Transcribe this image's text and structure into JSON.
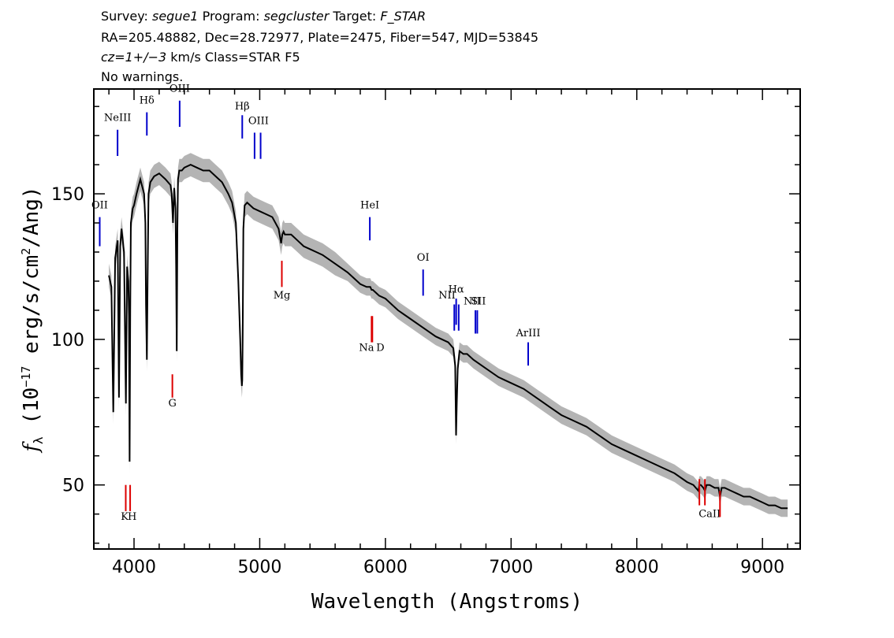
{
  "header": {
    "survey_label": "Survey:",
    "survey": "segue1",
    "program_label": "Program:",
    "program": "segcluster",
    "target_label": "Target:",
    "target": "F_STAR",
    "line2": "RA=205.48882, Dec=28.72977, Plate=2475, Fiber=547, MJD=53845",
    "cz": "cz=1+/−3",
    "class_text": " km/s Class=STAR F5",
    "warnings": "No warnings."
  },
  "chart_data": {
    "type": "line",
    "xlabel": "Wavelength (Angstroms)",
    "ylabel_prefix": "f",
    "ylabel_sub": "λ",
    "ylabel_unit": " (10",
    "ylabel_exp": "−17",
    "ylabel_tail": " erg/s/cm",
    "ylabel_exp2": "2",
    "ylabel_end": "/Ang)",
    "xlim": [
      3680,
      9300
    ],
    "ylim": [
      28,
      186
    ],
    "xticks": [
      4000,
      5000,
      6000,
      7000,
      8000,
      9000
    ],
    "xtick_labels": [
      "4000",
      "5000",
      "6000",
      "7000",
      "8000",
      "9000"
    ],
    "yticks": [
      50,
      100,
      150
    ],
    "ytick_labels": [
      "50",
      "100",
      "150"
    ],
    "colors": {
      "flux": "#000000",
      "error": "#b4b4b4",
      "emission": "#0000cc",
      "absorption": "#dd0000"
    },
    "series": [
      {
        "x": [
          3800,
          3820,
          3835,
          3850,
          3870,
          3880,
          3890,
          3900,
          3920,
          3935,
          3945,
          3955,
          3960,
          3965,
          3970,
          3975,
          3990,
          4000,
          4020,
          4050,
          4080,
          4090,
          4095,
          4102,
          4108,
          4115,
          4130,
          4160,
          4200,
          4250,
          4290,
          4300,
          4310,
          4320,
          4330,
          4335,
          4340,
          4345,
          4350,
          4360,
          4380,
          4400,
          4450,
          4500,
          4550,
          4600,
          4650,
          4700,
          4750,
          4780,
          4810,
          4830,
          4845,
          4852,
          4858,
          4861,
          4864,
          4870,
          4880,
          4900,
          4950,
          5000,
          5050,
          5100,
          5150,
          5170,
          5180,
          5190,
          5200,
          5250,
          5300,
          5350,
          5400,
          5450,
          5500,
          5600,
          5700,
          5800,
          5850,
          5880,
          5890,
          5900,
          5950,
          6000,
          6100,
          6200,
          6300,
          6400,
          6500,
          6540,
          6555,
          6562,
          6568,
          6575,
          6590,
          6620,
          6650,
          6700,
          6800,
          6900,
          7000,
          7100,
          7200,
          7300,
          7400,
          7500,
          7600,
          7700,
          7800,
          7900,
          8000,
          8100,
          8200,
          8300,
          8400,
          8450,
          8490,
          8498,
          8510,
          8530,
          8542,
          8555,
          8580,
          8620,
          8650,
          8662,
          8675,
          8700,
          8750,
          8800,
          8850,
          8900,
          8950,
          9000,
          9050,
          9100,
          9150,
          9200
        ],
        "y": [
          122,
          118,
          75,
          128,
          134,
          80,
          132,
          138,
          130,
          78,
          125,
          120,
          108,
          58,
          110,
          140,
          145,
          146,
          150,
          155,
          150,
          140,
          112,
          93,
          120,
          150,
          154,
          156,
          157,
          155,
          153,
          150,
          140,
          152,
          145,
          125,
          96,
          138,
          155,
          158,
          158,
          159,
          160,
          159,
          158,
          158,
          156,
          154,
          150,
          147,
          140,
          120,
          100,
          88,
          84,
          86,
          100,
          138,
          146,
          147,
          145,
          144,
          143,
          142,
          138,
          133,
          136,
          137,
          136,
          136,
          134,
          132,
          131,
          130,
          129,
          126,
          123,
          119,
          118,
          118,
          117,
          117,
          115,
          114,
          110,
          107,
          104,
          101,
          99,
          97,
          91,
          67,
          78,
          90,
          96,
          95,
          95,
          93,
          90,
          87,
          85,
          83,
          80,
          77,
          74,
          72,
          70,
          67,
          64,
          62,
          60,
          58,
          56,
          54,
          51,
          50,
          48,
          50,
          50,
          49,
          48,
          50,
          50,
          49,
          49,
          46,
          49,
          49,
          48,
          47,
          46,
          46,
          45,
          44,
          43,
          43,
          42,
          42
        ],
        "err": [
          4,
          4,
          4,
          4,
          4,
          4,
          4,
          4,
          4,
          4,
          4,
          4,
          4,
          4,
          4,
          4,
          4,
          4,
          4,
          4,
          4,
          4,
          4,
          4,
          4,
          4,
          4,
          4,
          4,
          4,
          4,
          4,
          4,
          4,
          4,
          4,
          4,
          4,
          4,
          4,
          4,
          4,
          4,
          4,
          4,
          4,
          4,
          4,
          4,
          4,
          4,
          4,
          4,
          4,
          4,
          4,
          4,
          4,
          4,
          4,
          4,
          4,
          4,
          4,
          4,
          4,
          4,
          4,
          4,
          4,
          4,
          4,
          4,
          4,
          4,
          4,
          3,
          3,
          3,
          3,
          3,
          3,
          3,
          3,
          3,
          3,
          3,
          3,
          3,
          3,
          3,
          3,
          3,
          3,
          3,
          3,
          3,
          3,
          3,
          3,
          3,
          3,
          3,
          3,
          3,
          3,
          3,
          3,
          3,
          3,
          3,
          3,
          3,
          3,
          3,
          3,
          3,
          3,
          3,
          3,
          3,
          3,
          3,
          3,
          3,
          3,
          3,
          3,
          3,
          3,
          3,
          3,
          3,
          3,
          3,
          3,
          3,
          3
        ]
      }
    ],
    "emission_lines": [
      {
        "label": "OII",
        "x": 3727,
        "y0": 132,
        "y1": 142,
        "lx": 3727,
        "ly": 145
      },
      {
        "label": "NeIII",
        "x": 3869,
        "y0": 163,
        "y1": 172,
        "lx": 3869,
        "ly": 175
      },
      {
        "label": "Hδ",
        "x": 4102,
        "y0": 170,
        "y1": 178,
        "lx": 4102,
        "ly": 181
      },
      {
        "label": "OIII",
        "x": 4363,
        "y0": 173,
        "y1": 182,
        "lx": 4363,
        "ly": 185
      },
      {
        "label": "Hβ",
        "x": 4861,
        "y0": 169,
        "y1": 177,
        "lx": 4861,
        "ly": 179
      },
      {
        "label": "OIII",
        "x": 4959,
        "y0": 162,
        "y1": 171,
        "lx": 4990,
        "ly": 174
      },
      {
        "label": "",
        "x": 5007,
        "y0": 162,
        "y1": 171,
        "lx": 5007,
        "ly": 174
      },
      {
        "label": "HeI",
        "x": 5876,
        "y0": 134,
        "y1": 142,
        "lx": 5876,
        "ly": 145
      },
      {
        "label": "OI",
        "x": 6300,
        "y0": 115,
        "y1": 124,
        "lx": 6300,
        "ly": 127
      },
      {
        "label": "NII",
        "x": 6548,
        "y0": 103,
        "y1": 112,
        "lx": 6490,
        "ly": 114
      },
      {
        "label": "Hα",
        "x": 6563,
        "y0": 105,
        "y1": 114,
        "lx": 6563,
        "ly": 116
      },
      {
        "label": "",
        "x": 6583,
        "y0": 103,
        "y1": 112,
        "lx": 6583,
        "ly": 114
      },
      {
        "label": "NII",
        "x": 6716,
        "y0": 102,
        "y1": 110,
        "lx": 6690,
        "ly": 112
      },
      {
        "label": "SII",
        "x": 6731,
        "y0": 102,
        "y1": 110,
        "lx": 6740,
        "ly": 112
      },
      {
        "label": "ArIII",
        "x": 7136,
        "y0": 91,
        "y1": 99,
        "lx": 7136,
        "ly": 101
      }
    ],
    "absorption_lines": [
      {
        "label": "K",
        "x": 3934,
        "y0": 41,
        "y1": 50,
        "lx": 3925,
        "ly": 38
      },
      {
        "label": "H",
        "x": 3969,
        "y0": 41,
        "y1": 50,
        "lx": 3985,
        "ly": 38
      },
      {
        "label": "G",
        "x": 4305,
        "y0": 80,
        "y1": 88,
        "lx": 4305,
        "ly": 77
      },
      {
        "label": "Mg",
        "x": 5176,
        "y0": 118,
        "y1": 127,
        "lx": 5176,
        "ly": 114
      },
      {
        "label": "Na",
        "x": 5890,
        "y0": 99,
        "y1": 108,
        "lx": 5850,
        "ly": 96
      },
      {
        "label": "D",
        "x": 5896,
        "y0": 99,
        "y1": 108,
        "lx": 5960,
        "ly": 96
      },
      {
        "label": "CaII",
        "x": 8498,
        "y0": 43,
        "y1": 52,
        "lx": 8580,
        "ly": 39
      },
      {
        "label": "",
        "x": 8542,
        "y0": 43,
        "y1": 52,
        "lx": 8542,
        "ly": 39
      },
      {
        "label": "",
        "x": 8662,
        "y0": 39,
        "y1": 48,
        "lx": 8662,
        "ly": 39
      }
    ]
  }
}
